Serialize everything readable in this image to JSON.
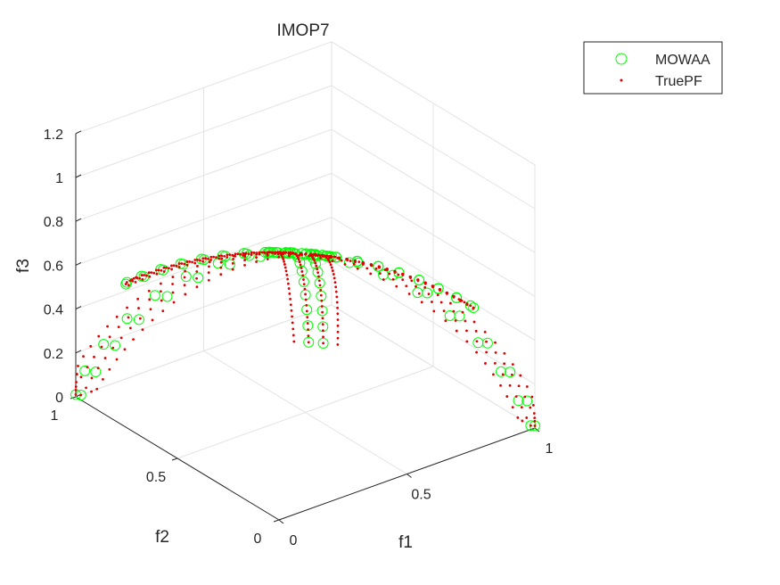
{
  "chart_data": {
    "type": "scatter",
    "dimensions": 3,
    "title": "IMOP7",
    "xlabel": "f1",
    "ylabel": "f2",
    "zlabel": "f3",
    "xlim": [
      0,
      1
    ],
    "ylim": [
      0,
      1
    ],
    "zlim": [
      0,
      1.2
    ],
    "xticks": [
      "0",
      "0.5",
      "1"
    ],
    "yticks": [
      "0",
      "0.5",
      "1"
    ],
    "zticks": [
      "0",
      "0.2",
      "0.4",
      "0.6",
      "0.8",
      "1",
      "1.2"
    ],
    "grid": true,
    "legend_position": "top-right",
    "colors": {
      "mowaa": "#00ff00",
      "truepf": "#e00000"
    },
    "series": [
      {
        "name": "MOWAA",
        "marker": "circle-open",
        "samples_per_row": 9
      },
      {
        "name": "TruePF",
        "marker": "dot",
        "samples_per_row": 22
      }
    ],
    "front_shape": "arms on unit sphere converging to a central cluster",
    "center": [
      0.42,
      0.42,
      0.8
    ],
    "arms": [
      {
        "from": [
          1.0,
          0.0,
          0.0
        ],
        "to": [
          0.42,
          0.42,
          0.8
        ]
      },
      {
        "from": [
          0.0,
          1.0,
          0.0
        ],
        "to": [
          0.42,
          0.42,
          0.8
        ]
      },
      {
        "from": [
          0.7,
          0.7,
          0.12
        ],
        "to": [
          0.42,
          0.42,
          0.8
        ]
      },
      {
        "from": [
          0.0,
          0.76,
          0.65
        ],
        "to": [
          0.42,
          0.42,
          0.8
        ]
      },
      {
        "from": [
          0.76,
          0.0,
          0.65
        ],
        "to": [
          0.42,
          0.42,
          0.8
        ]
      }
    ],
    "rows_per_arm": 4
  }
}
